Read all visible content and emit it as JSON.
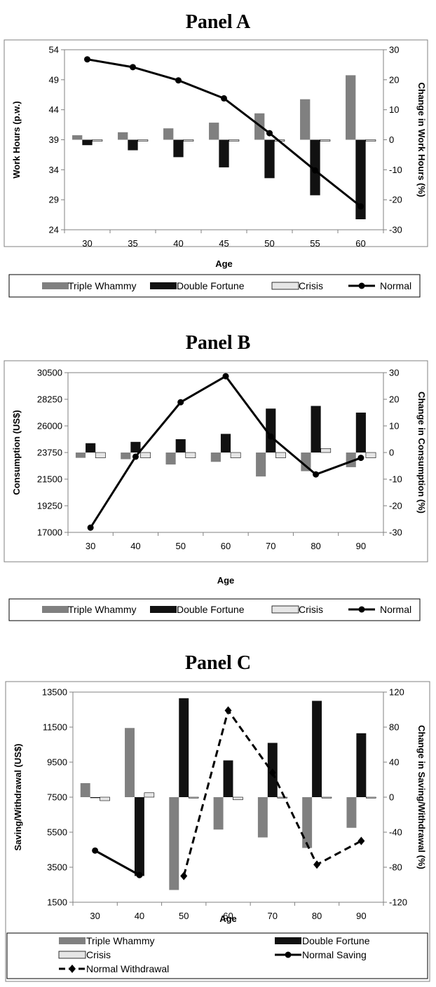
{
  "chart_data": [
    {
      "type": "bar",
      "title": "Panel A",
      "xlabel": "Age",
      "ylabel": "Work Hours (p.w.)",
      "y2label": "Change in Work Hours (%)",
      "categories": [
        "30",
        "35",
        "40",
        "45",
        "50",
        "55",
        "60"
      ],
      "ylim": [
        24,
        54
      ],
      "yticks": [
        "24",
        "29",
        "34",
        "39",
        "44",
        "49",
        "54"
      ],
      "y2lim": [
        -30,
        30
      ],
      "y2ticks": [
        "-30",
        "-20",
        "-10",
        "0",
        "10",
        "20",
        "30"
      ],
      "series": [
        {
          "name": "Triple Whammy",
          "kind": "bar",
          "axis": "right",
          "color": "#808080",
          "values": [
            1.5,
            2.5,
            3.8,
            5.7,
            8.8,
            13.5,
            21.5
          ]
        },
        {
          "name": "Double Fortune",
          "kind": "bar",
          "axis": "right",
          "color": "#111111",
          "values": [
            -1.8,
            -3.5,
            -5.8,
            -9.2,
            -12.8,
            -18.5,
            -26.5
          ]
        },
        {
          "name": "Crisis",
          "kind": "bar",
          "axis": "right",
          "color": "#e6e6e6",
          "values": [
            -0.5,
            -0.5,
            -0.5,
            -0.5,
            -0.5,
            -0.5,
            -0.5
          ]
        },
        {
          "name": "Normal",
          "kind": "line",
          "axis": "left",
          "color": "#000000",
          "marker": "circle",
          "dash": false,
          "values": [
            52.4,
            51.1,
            48.9,
            45.9,
            40.1,
            33.9,
            27.9
          ]
        }
      ],
      "legend": {
        "placement": "bottom",
        "rows": 1
      }
    },
    {
      "type": "bar",
      "title": "Panel B",
      "xlabel": "Age",
      "ylabel": "Consumption (US$)",
      "y2label": "Change in Consumption (%)",
      "categories": [
        "30",
        "40",
        "50",
        "60",
        "70",
        "80",
        "90"
      ],
      "ylim": [
        17000,
        30500
      ],
      "yticks": [
        "17000",
        "19250",
        "21500",
        "23750",
        "26000",
        "28250",
        "30500"
      ],
      "y2lim": [
        -30,
        30
      ],
      "y2ticks": [
        "-30",
        "-20",
        "-10",
        "0",
        "10",
        "20",
        "30"
      ],
      "series": [
        {
          "name": "Triple Whammy",
          "kind": "bar",
          "axis": "right",
          "color": "#808080",
          "values": [
            -2,
            -2.5,
            -4.5,
            -3.5,
            -9,
            -7,
            -5.5
          ]
        },
        {
          "name": "Double Fortune",
          "kind": "bar",
          "axis": "right",
          "color": "#111111",
          "values": [
            3.5,
            4,
            5,
            7,
            16.5,
            17.5,
            15
          ]
        },
        {
          "name": "Crisis",
          "kind": "bar",
          "axis": "right",
          "color": "#e6e6e6",
          "values": [
            -2,
            -2,
            -2,
            -2,
            -2,
            1.5,
            -2
          ]
        },
        {
          "name": "Normal",
          "kind": "line",
          "axis": "left",
          "color": "#000000",
          "marker": "circle",
          "dash": false,
          "values": [
            17400,
            23400,
            28000,
            30200,
            25100,
            21900,
            23300
          ]
        }
      ],
      "legend": {
        "placement": "bottom",
        "rows": 1
      }
    },
    {
      "type": "bar",
      "title": "Panel C",
      "xlabel": "Age",
      "ylabel": "Saving/Withdrawal (US$)",
      "y2label": "Change in Saving/Withdrawal (%)",
      "categories": [
        "30",
        "40",
        "50",
        "60",
        "70",
        "80",
        "90"
      ],
      "ylim": [
        1500,
        13500
      ],
      "yticks": [
        "1500",
        "3500",
        "5500",
        "7500",
        "9500",
        "11500",
        "13500"
      ],
      "y2lim": [
        -120,
        120
      ],
      "y2ticks": [
        "-120",
        "-80",
        "-40",
        "0",
        "40",
        "80",
        "120"
      ],
      "series": [
        {
          "name": "Triple Whammy",
          "kind": "bar",
          "axis": "right",
          "color": "#808080",
          "values": [
            16,
            79,
            -106,
            -37,
            -46,
            -58,
            -35
          ]
        },
        {
          "name": "Double Fortune",
          "kind": "bar",
          "axis": "right",
          "color": "#111111",
          "values": [
            -1,
            -90,
            113,
            42,
            62,
            110,
            73
          ]
        },
        {
          "name": "Crisis",
          "kind": "bar",
          "axis": "right",
          "color": "#e6e6e6",
          "values": [
            -4,
            5,
            -1,
            -3,
            -1,
            -1,
            -1
          ]
        },
        {
          "name": "Normal Saving",
          "kind": "line",
          "axis": "left",
          "color": "#000000",
          "marker": "circle",
          "dash": false,
          "values": [
            4450,
            3050,
            null,
            null,
            null,
            null,
            null
          ]
        },
        {
          "name": "Normal Withdrawal",
          "kind": "line",
          "axis": "left",
          "color": "#000000",
          "marker": "diamond",
          "dash": true,
          "values": [
            null,
            null,
            3000,
            12450,
            8900,
            3650,
            5000
          ]
        }
      ],
      "legend": {
        "placement": "bottom",
        "rows": 3
      }
    }
  ]
}
